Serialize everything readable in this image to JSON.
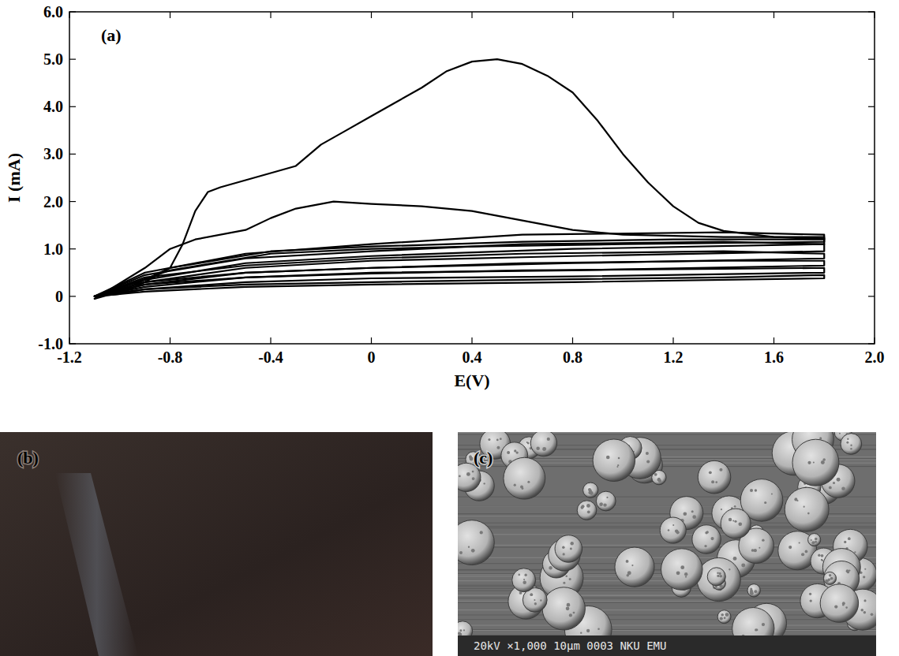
{
  "chart_data": {
    "type": "line",
    "panel_label": "(a)",
    "x_label": "E(V)",
    "y_label": "I (mA)",
    "color": "#000000",
    "xlim": [
      -1.2,
      2.0
    ],
    "ylim": [
      -1.0,
      6.0
    ],
    "xticks": [
      -1.2,
      -0.8,
      -0.4,
      0,
      0.4,
      0.8,
      1.2,
      1.6,
      {
        "value": 2,
        "label": "2.0"
      }
    ],
    "yticks": [
      {
        "value": -1,
        "label": "-1.0"
      },
      0,
      {
        "value": 1,
        "label": "1.0"
      },
      {
        "value": 2,
        "label": "2.0"
      },
      {
        "value": 3,
        "label": "3.0"
      },
      {
        "value": 4,
        "label": "4.0"
      },
      {
        "value": 5,
        "label": "5.0"
      },
      {
        "value": 6,
        "label": "6.0"
      }
    ],
    "series": [
      {
        "x": [
          -1.1,
          -1.0,
          -0.9,
          -0.8,
          -0.75,
          -0.7,
          -0.65,
          -0.6,
          -0.5,
          -0.4,
          -0.3,
          -0.2,
          -0.1,
          0,
          0.1,
          0.2,
          0.3,
          0.4,
          0.5,
          0.6,
          0.7,
          0.8,
          0.9,
          1.0,
          1.1,
          1.2,
          1.3,
          1.4,
          1.6,
          1.8,
          1.8,
          1.2,
          0.6,
          0,
          -0.4,
          -0.8,
          -1.0,
          -1.1
        ],
        "values": [
          0,
          0.05,
          0.3,
          0.6,
          1.1,
          1.8,
          2.2,
          2.3,
          2.45,
          2.6,
          2.75,
          3.2,
          3.5,
          3.8,
          4.1,
          4.4,
          4.75,
          4.95,
          5.0,
          4.9,
          4.65,
          4.3,
          3.7,
          3.0,
          2.4,
          1.9,
          1.55,
          1.38,
          1.25,
          1.22,
          1.2,
          1.2,
          1.15,
          1.05,
          0.95,
          0.6,
          0.1,
          -0.05
        ]
      },
      {
        "x": [
          -1.1,
          -0.9,
          -0.8,
          -0.7,
          -0.5,
          -0.4,
          -0.3,
          -0.15,
          0,
          0.2,
          0.4,
          0.6,
          0.8,
          1.0,
          1.4,
          1.8,
          1.8,
          1.0,
          0.4,
          0,
          -0.4,
          -0.8,
          -1.1
        ],
        "values": [
          -0.05,
          0.6,
          1.0,
          1.2,
          1.4,
          1.65,
          1.85,
          2.0,
          1.95,
          1.9,
          1.8,
          1.6,
          1.4,
          1.3,
          1.25,
          1.25,
          1.15,
          1.1,
          1.05,
          1.0,
          0.9,
          0.55,
          0
        ]
      },
      {
        "x": [
          -1.1,
          -0.9,
          -0.5,
          0,
          0.6,
          1.4,
          1.8,
          1.8,
          0.8,
          0,
          -0.5,
          -0.9,
          -1.1
        ],
        "values": [
          0,
          0.5,
          0.9,
          1.1,
          1.3,
          1.35,
          1.3,
          1.1,
          1.0,
          0.85,
          0.7,
          0.35,
          0
        ]
      },
      {
        "x": [
          -1.1,
          -0.9,
          -0.5,
          0,
          0.6,
          1.4,
          1.8,
          1.8,
          0.8,
          0,
          -0.5,
          -0.9,
          -1.1
        ],
        "values": [
          0,
          0.45,
          0.8,
          0.95,
          1.1,
          1.15,
          1.1,
          0.95,
          0.85,
          0.75,
          0.6,
          0.3,
          0
        ]
      },
      {
        "x": [
          -1.1,
          -0.9,
          -0.5,
          0,
          0.6,
          1.4,
          1.8,
          1.8,
          0.8,
          0,
          -0.5,
          -0.9,
          -1.1
        ],
        "values": [
          0,
          0.4,
          0.65,
          0.8,
          0.9,
          0.95,
          0.9,
          0.8,
          0.7,
          0.6,
          0.5,
          0.25,
          0
        ]
      },
      {
        "x": [
          -1.1,
          -0.9,
          -0.5,
          0,
          0.6,
          1.4,
          1.8,
          1.8,
          0.8,
          0,
          -0.5,
          -0.9,
          -1.1
        ],
        "values": [
          0,
          0.3,
          0.5,
          0.6,
          0.7,
          0.75,
          0.75,
          0.65,
          0.55,
          0.5,
          0.4,
          0.2,
          0
        ]
      },
      {
        "x": [
          -1.1,
          -0.9,
          -0.5,
          0,
          0.6,
          1.4,
          1.8,
          1.8,
          0.8,
          0,
          -0.5,
          -0.9,
          -1.1
        ],
        "values": [
          0,
          0.25,
          0.4,
          0.48,
          0.55,
          0.58,
          0.6,
          0.5,
          0.42,
          0.38,
          0.3,
          0.15,
          0
        ]
      },
      {
        "x": [
          -1.1,
          -0.9,
          -0.5,
          0,
          0.6,
          1.4,
          1.8,
          1.8,
          0.8,
          0,
          -0.5,
          -0.9,
          -1.1
        ],
        "values": [
          0,
          0.15,
          0.25,
          0.3,
          0.35,
          0.4,
          0.45,
          0.38,
          0.3,
          0.25,
          0.2,
          0.1,
          0
        ]
      }
    ]
  },
  "images": {
    "b": {
      "label": "(b)"
    },
    "c": {
      "label": "(c)",
      "caption": "20kV  ×1,000  10μm  0003 NKU EMU"
    }
  }
}
